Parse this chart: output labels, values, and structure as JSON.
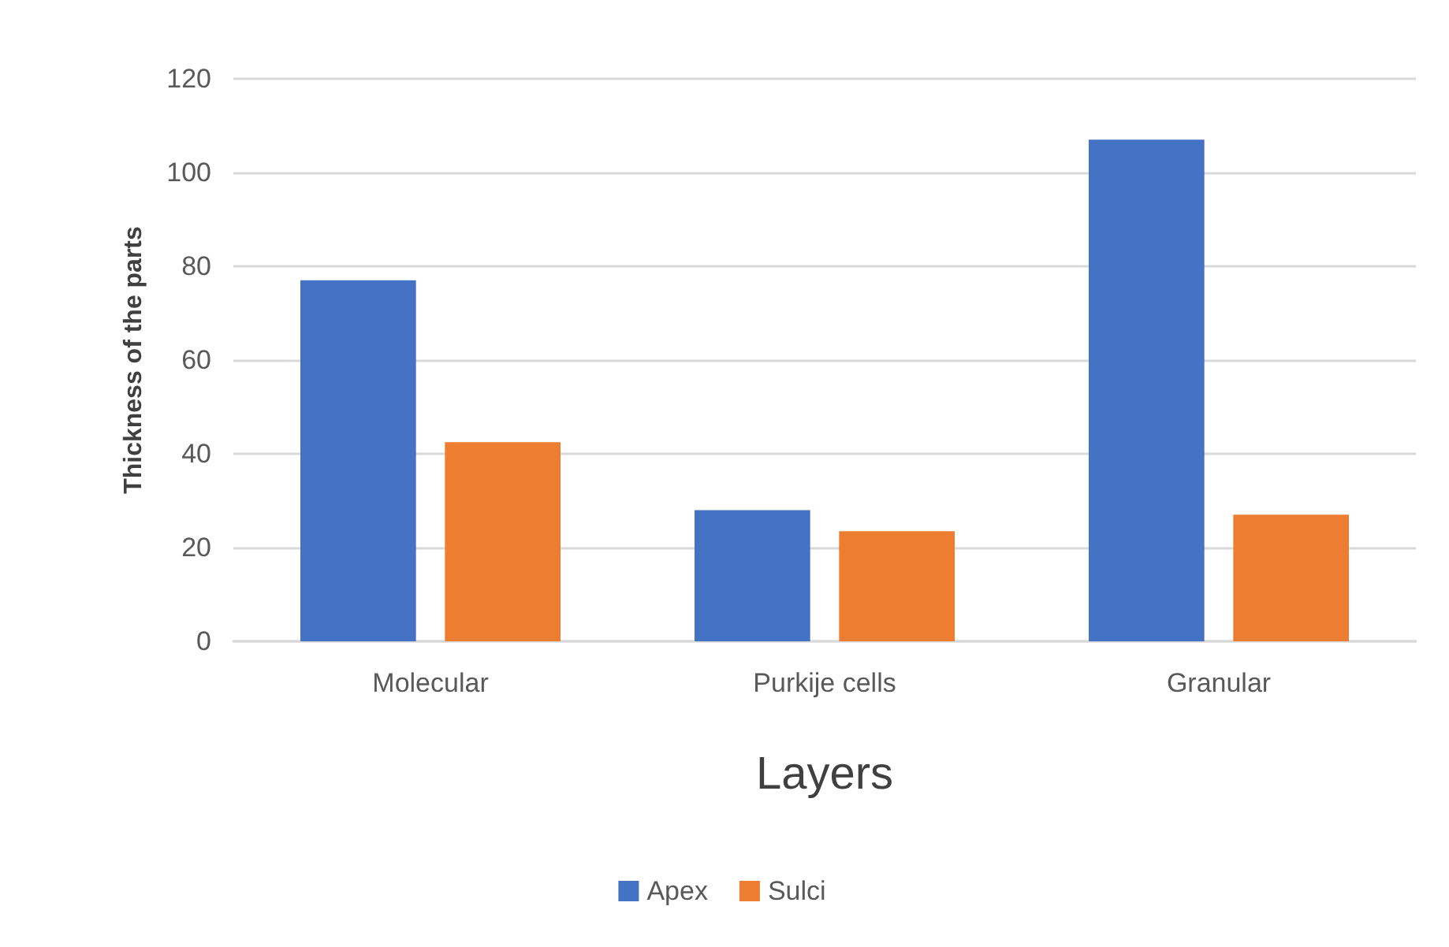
{
  "chart_data": {
    "type": "bar",
    "xlabel": "Layers",
    "ylabel": "Thickness of the parts",
    "categories": [
      "Molecular",
      "Purkije cells",
      "Granular"
    ],
    "series": [
      {
        "name": "Apex",
        "color": "#4472c4",
        "values": [
          77,
          28,
          107
        ]
      },
      {
        "name": "Sulci",
        "color": "#ed7d31",
        "values": [
          42.5,
          23.5,
          27
        ]
      }
    ],
    "ylim": [
      0,
      120
    ],
    "yticks": [
      0,
      20,
      40,
      60,
      80,
      100,
      120
    ],
    "grid": "y",
    "legend": "bottom"
  }
}
